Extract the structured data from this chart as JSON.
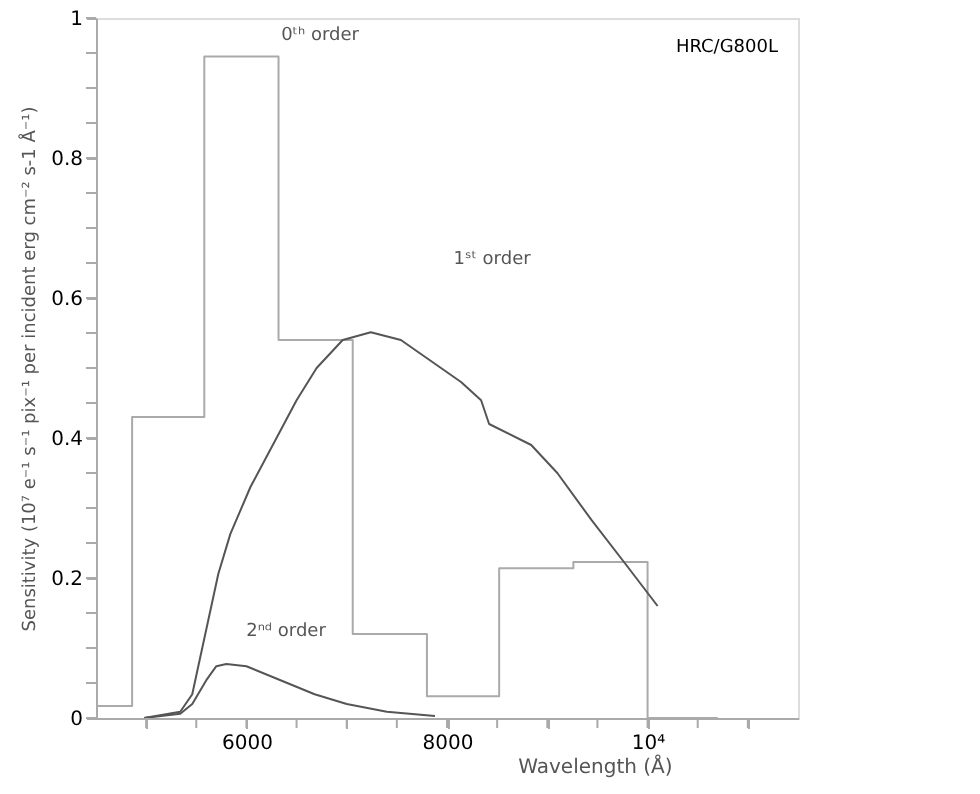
{
  "chart_data": {
    "type": "line",
    "xlabel": "Wavelength (Å)",
    "ylabel": "Sensitivity (10⁷ e⁻¹ s⁻¹ pix⁻¹ per incident erg cm⁻² s-1 Å⁻¹)",
    "xlim": [
      4500,
      11500
    ],
    "ylim": [
      0,
      1
    ],
    "xticks": [
      {
        "value": 5000,
        "label": null
      },
      {
        "value": 5500,
        "label": null
      },
      6000,
      {
        "value": 6500,
        "label": null
      },
      {
        "value": 7000,
        "label": null
      },
      {
        "value": 7500,
        "label": null
      },
      8000,
      {
        "value": 8500,
        "label": null
      },
      {
        "value": 9000,
        "label": null
      },
      {
        "value": 9500,
        "label": null
      },
      {
        "value": 10000,
        "label": "10⁴"
      },
      {
        "value": 10500,
        "label": null
      },
      {
        "value": 11000,
        "label": null
      }
    ],
    "yticks": [
      0,
      {
        "value": 0.05,
        "label": null
      },
      {
        "value": 0.1,
        "label": null
      },
      {
        "value": 0.15,
        "label": null
      },
      0.2,
      {
        "value": 0.25,
        "label": null
      },
      {
        "value": 0.3,
        "label": null
      },
      {
        "value": 0.35,
        "label": null
      },
      0.4,
      {
        "value": 0.45,
        "label": null
      },
      {
        "value": 0.5,
        "label": null
      },
      {
        "value": 0.55,
        "label": null
      },
      0.6,
      {
        "value": 0.65,
        "label": null
      },
      {
        "value": 0.7,
        "label": null
      },
      {
        "value": 0.75,
        "label": null
      },
      0.8,
      {
        "value": 0.85,
        "label": null
      },
      {
        "value": 0.9,
        "label": null
      },
      {
        "value": 0.95,
        "label": null
      },
      1
    ],
    "grid": false,
    "series": [
      {
        "type": "step",
        "color": "#aaaaaa",
        "x": [
          4500,
          4860,
          5580,
          6320,
          7060,
          7800,
          8520,
          9260,
          10000,
          10700
        ],
        "values": [
          0.017,
          0.43,
          0.945,
          0.54,
          0.12,
          0.031,
          0.214,
          0.223,
          0,
          0
        ]
      },
      {
        "color": "#555555",
        "x": [
          4980,
          5340,
          5460,
          5520,
          5620,
          5720,
          5840,
          6040,
          6300,
          6500,
          6700,
          6960,
          7240,
          7540,
          7940,
          8140,
          8340,
          8420,
          8840,
          9100,
          9440,
          9780,
          10100
        ],
        "values": [
          0,
          0.009,
          0.034,
          0.074,
          0.14,
          0.206,
          0.263,
          0.33,
          0.4,
          0.454,
          0.5,
          0.54,
          0.551,
          0.54,
          0.5,
          0.48,
          0.454,
          0.42,
          0.39,
          0.35,
          0.283,
          0.22,
          0.16
        ]
      },
      {
        "color": "#555555",
        "x": [
          4980,
          5340,
          5460,
          5600,
          5700,
          5800,
          6000,
          6340,
          6680,
          7000,
          7400,
          7880
        ],
        "values": [
          0,
          0.006,
          0.02,
          0.054,
          0.074,
          0.077,
          0.074,
          0.054,
          0.034,
          0.02,
          0.009,
          0.003
        ]
      }
    ],
    "annotations": [
      "0ᵗʰ order",
      "1ˢᵗ order",
      "2ⁿᵈ order",
      "HRC/G800L"
    ]
  }
}
